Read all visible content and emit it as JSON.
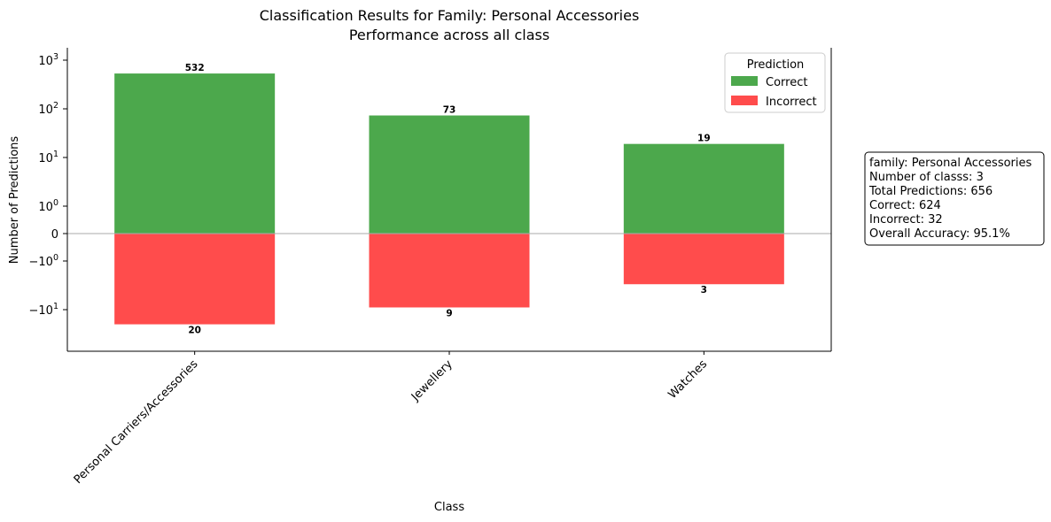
{
  "chart_data": {
    "type": "bar",
    "title": "Classification Results for Family: Personal Accessories",
    "subtitle": "Performance across all class",
    "xlabel": "Class",
    "ylabel": "Number of Predictions",
    "yscale": "symlog",
    "ylim": [
      -20,
      1000
    ],
    "yticks": [
      {
        "value": 1000,
        "base": "10",
        "exp": "3"
      },
      {
        "value": 100,
        "base": "10",
        "exp": "2"
      },
      {
        "value": 10,
        "base": "10",
        "exp": "1"
      },
      {
        "value": 1,
        "base": "10",
        "exp": "0"
      },
      {
        "value": 0,
        "text": "0"
      },
      {
        "value": -1,
        "base": "−10",
        "exp": "0"
      },
      {
        "value": -10,
        "base": "−10",
        "exp": "1"
      }
    ],
    "categories": [
      "Personal Carriers/Accessories",
      "Jewellery",
      "Watches"
    ],
    "series": [
      {
        "name": "Correct",
        "values": [
          532,
          73,
          19
        ],
        "color": "#4ca84c"
      },
      {
        "name": "Incorrect",
        "values": [
          20,
          9,
          3
        ],
        "color": "#ff4c4c"
      }
    ],
    "legend": {
      "title": "Prediction",
      "placement": "top-right"
    },
    "grid": false
  },
  "stats_box": {
    "lines": [
      "family: Personal Accessories",
      "Number of classs: 3",
      "Total Predictions: 656",
      "Correct: 624",
      "Incorrect: 32",
      "Overall Accuracy: 95.1%"
    ]
  }
}
